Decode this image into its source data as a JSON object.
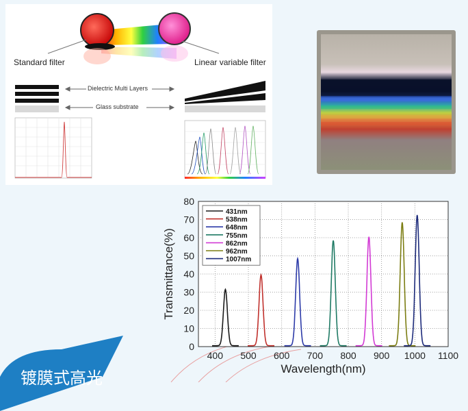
{
  "diagram": {
    "standard_filter_label": "Standard filter",
    "linear_filter_label": "Linear variable filter",
    "dielectric_label": "Dielectric Multi Layers",
    "glass_label": "Glass substrate"
  },
  "banner": {
    "text": "镀膜式高光"
  },
  "colors": {
    "page_bg": "#eef6fb",
    "bubble": "#1e7fc4"
  },
  "chart_data": {
    "type": "line",
    "ylabel": "Transmittance(%)",
    "xlabel": "Wavelength(nm)",
    "xlim": [
      350,
      1100
    ],
    "ylim": [
      0,
      80
    ],
    "x_ticks": [
      "400",
      "500",
      "600",
      "700",
      "800",
      "900",
      "1000",
      "1100"
    ],
    "x_tick_values": [
      400,
      500,
      600,
      700,
      800,
      900,
      1000,
      1100
    ],
    "y_ticks": [
      "0",
      "10",
      "20",
      "30",
      "40",
      "50",
      "60",
      "70",
      "80"
    ],
    "y_tick_values": [
      0,
      10,
      20,
      30,
      40,
      50,
      60,
      70,
      80
    ],
    "grid": true,
    "legend_position": "top-left",
    "series": [
      {
        "name": "431nm",
        "peak_x": 431,
        "peak_y": 31,
        "color": "#1a1a1a"
      },
      {
        "name": "538nm",
        "peak_x": 538,
        "peak_y": 39,
        "color": "#c0302c"
      },
      {
        "name": "648nm",
        "peak_x": 648,
        "peak_y": 48,
        "color": "#2c3aa8"
      },
      {
        "name": "755nm",
        "peak_x": 755,
        "peak_y": 58,
        "color": "#1f7a64"
      },
      {
        "name": "862nm",
        "peak_x": 862,
        "peak_y": 60,
        "color": "#d23ad4"
      },
      {
        "name": "962nm",
        "peak_x": 962,
        "peak_y": 68,
        "color": "#7b7d12"
      },
      {
        "name": "1007nm",
        "peak_x": 1007,
        "peak_y": 72,
        "color": "#1c2a7a"
      }
    ]
  }
}
